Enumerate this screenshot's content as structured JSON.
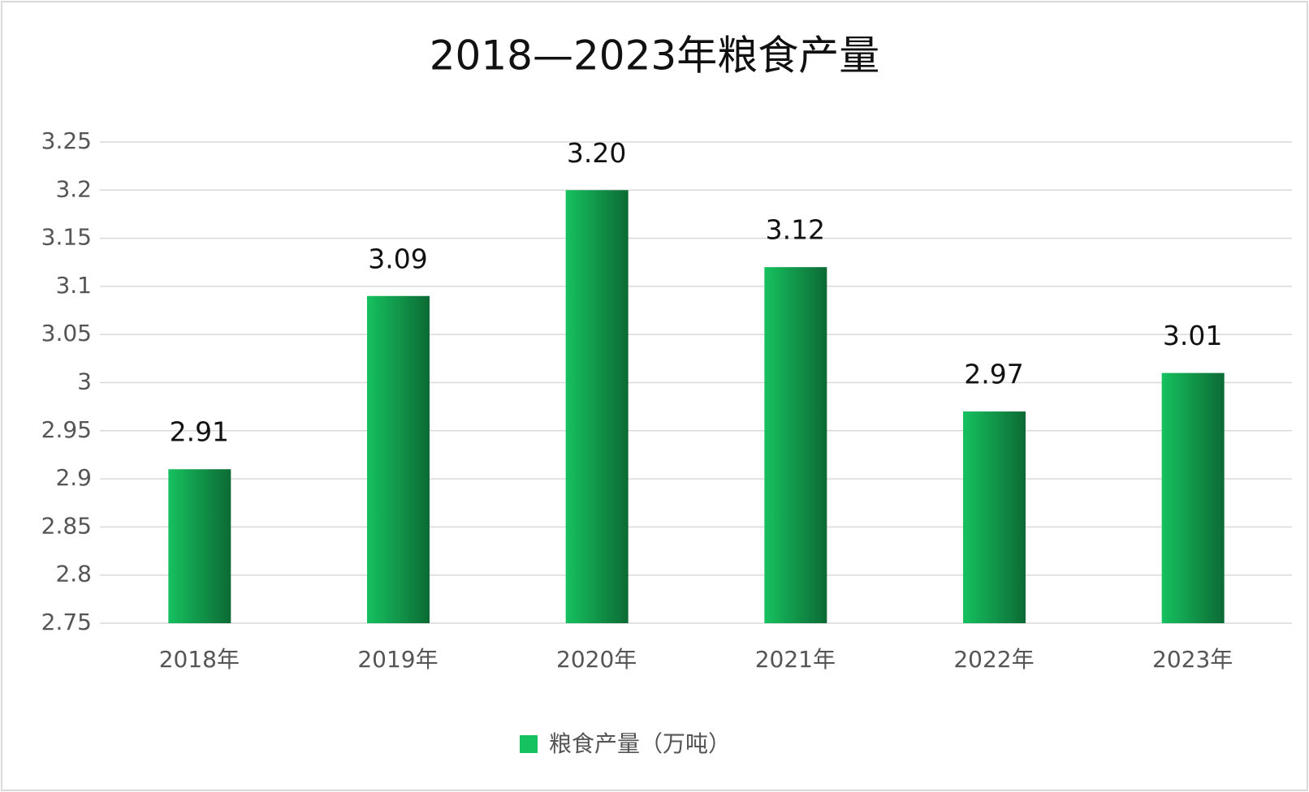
{
  "chart_data": {
    "type": "bar",
    "title": "2018—2023年粮食产量",
    "categories": [
      "2018年",
      "2019年",
      "2020年",
      "2021年",
      "2022年",
      "2023年"
    ],
    "series": [
      {
        "name": "粮食产量（万吨）",
        "color": "#16c15f",
        "values": [
          2.91,
          3.09,
          3.2,
          3.12,
          2.97,
          3.01
        ],
        "value_labels": [
          "2.91",
          "3.09",
          "3.20",
          "3.12",
          "2.97",
          "3.01"
        ]
      }
    ],
    "ylim": [
      2.75,
      3.25
    ],
    "yticks": [
      2.75,
      2.8,
      2.85,
      2.9,
      2.95,
      3,
      3.05,
      3.1,
      3.15,
      3.2,
      3.25
    ],
    "grid": true,
    "legend": "bottom"
  }
}
